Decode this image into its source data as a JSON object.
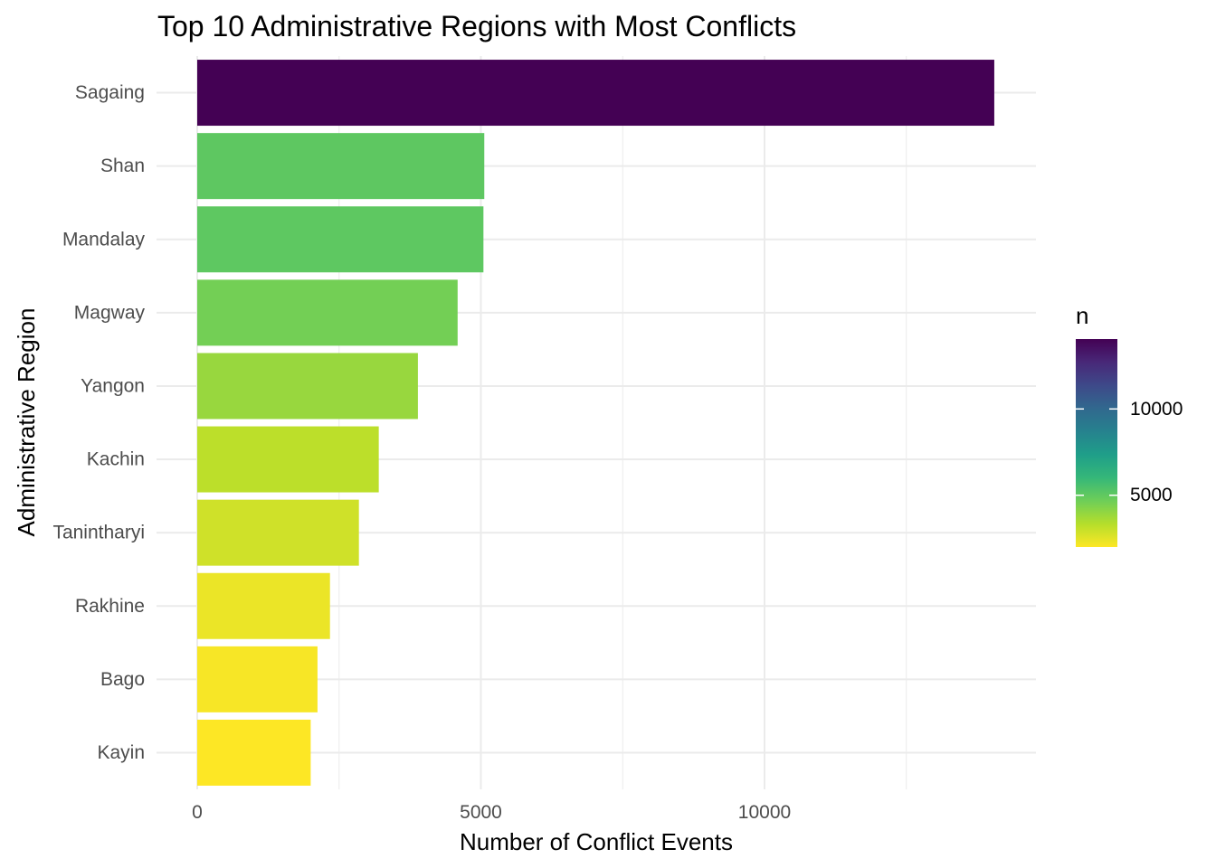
{
  "chart_data": {
    "type": "bar",
    "orientation": "horizontal",
    "title": "Top 10 Administrative Regions with Most Conflicts",
    "xlabel": "Number of Conflict Events",
    "ylabel": "Administrative Region",
    "categories": [
      "Sagaing",
      "Shan",
      "Mandalay",
      "Magway",
      "Yangon",
      "Kachin",
      "Tanintharyi",
      "Rakhine",
      "Bago",
      "Kayin"
    ],
    "values": [
      14050,
      5060,
      5045,
      4590,
      3890,
      3200,
      2850,
      2340,
      2120,
      2000
    ],
    "xlim": [
      0,
      14760
    ],
    "xticks": [
      0,
      5000,
      10000
    ],
    "xtick_labels": [
      "0",
      "5000",
      "10000"
    ],
    "grid": true,
    "legend": {
      "title": "n",
      "position": "right",
      "type": "colorbar",
      "min": 2000,
      "max": 14050,
      "ticks": [
        5000,
        10000
      ],
      "tick_labels": [
        "5000",
        "10000"
      ],
      "palette": "viridis-reversed",
      "colors": [
        "#fde725",
        "#b5de2b",
        "#6ece58",
        "#35b779",
        "#1f9e89",
        "#26828e",
        "#31688e",
        "#3e4989",
        "#482878",
        "#440154"
      ]
    }
  }
}
